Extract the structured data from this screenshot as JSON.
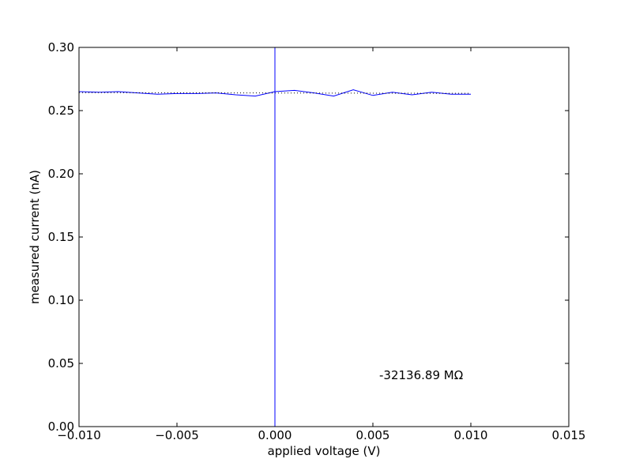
{
  "chart_data": {
    "type": "line",
    "xlabel": "applied voltage (V)",
    "ylabel": "measured current (nA)",
    "annotation": "-32136.89 MΩ",
    "xlim": [
      -0.01,
      0.015
    ],
    "ylim": [
      0,
      0.3
    ],
    "xticks": [
      {
        "value": -0.01,
        "label": "−0.010"
      },
      {
        "value": -0.005,
        "label": "−0.005"
      },
      {
        "value": 0,
        "label": "0.000"
      },
      {
        "value": 0.005,
        "label": "0.005"
      },
      {
        "value": 0.01,
        "label": "0.010"
      },
      {
        "value": 0.015,
        "label": "0.015"
      }
    ],
    "yticks": [
      {
        "value": 0,
        "label": "0.00"
      },
      0.05,
      {
        "value": 0.1,
        "label": "0.10"
      },
      0.15,
      {
        "value": 0.2,
        "label": "0.20"
      },
      0.25,
      {
        "value": 0.3,
        "label": "0.30"
      }
    ],
    "series": [
      {
        "color": "#0000ff",
        "style": "solid",
        "x": [
          -0.01,
          -0.009,
          -0.008,
          -0.007,
          -0.006,
          -0.005,
          -0.004,
          -0.003,
          -0.002,
          -0.001,
          0,
          0.001,
          0.002,
          0.003,
          0.004,
          0.005,
          0.006,
          0.007,
          0.008,
          0.009,
          0.01
        ],
        "values": [
          0.265,
          0.2645,
          0.265,
          0.264,
          0.263,
          0.2635,
          0.2635,
          0.264,
          0.2625,
          0.2615,
          0.265,
          0.266,
          0.264,
          0.2615,
          0.2665,
          0.262,
          0.2645,
          0.2625,
          0.2645,
          0.263,
          0.263
        ]
      },
      {
        "color": "#000000",
        "style": "dotted",
        "x": [
          -0.01,
          0.01
        ],
        "values": [
          0.26425,
          0.26363
        ]
      }
    ],
    "vline": {
      "x": 0,
      "color": "#0000ff"
    }
  }
}
